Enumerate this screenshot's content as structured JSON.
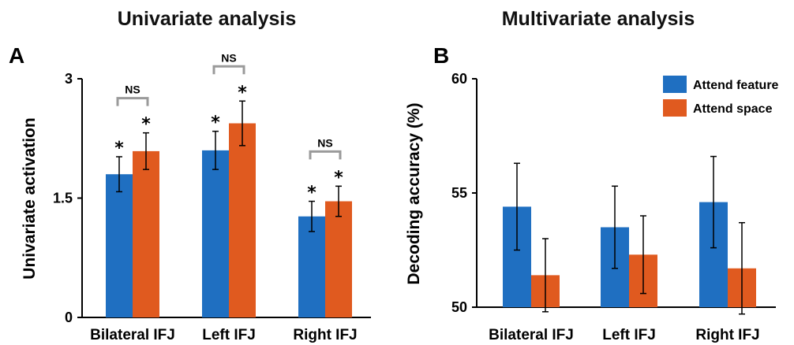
{
  "colors": {
    "attend_feature": "#1f6fc1",
    "attend_space": "#e05a1f",
    "bracket": "#9a9a9a"
  },
  "chart_data": [
    {
      "panel": "A",
      "type": "bar",
      "title": "Univariate analysis",
      "ylabel": "Univariate activation",
      "xlabel": "",
      "ylim": [
        0,
        3
      ],
      "yticks": [
        "0",
        "1.5",
        "3"
      ],
      "categories": [
        "Bilateral IFJ",
        "Left IFJ",
        "Right IFJ"
      ],
      "series": [
        {
          "name": "Attend feature",
          "values": [
            1.8,
            2.1,
            1.27
          ],
          "errors": [
            0.22,
            0.24,
            0.19
          ]
        },
        {
          "name": "Attend space",
          "values": [
            2.09,
            2.44,
            1.46
          ],
          "errors": [
            0.23,
            0.28,
            0.19
          ]
        }
      ],
      "significance_marker": "*",
      "comparison_label": "NS"
    },
    {
      "panel": "B",
      "type": "bar",
      "title": "Multivariate analysis",
      "ylabel": "Decoding accuracy (%)",
      "xlabel": "",
      "ylim": [
        50,
        60
      ],
      "yticks": [
        "50",
        "55",
        "60"
      ],
      "categories": [
        "Bilateral IFJ",
        "Left IFJ",
        "Right IFJ"
      ],
      "series": [
        {
          "name": "Attend feature",
          "values": [
            54.4,
            53.5,
            54.6
          ],
          "errors": [
            1.9,
            1.8,
            2.0
          ]
        },
        {
          "name": "Attend space",
          "values": [
            51.4,
            52.3,
            51.7
          ],
          "errors": [
            1.6,
            1.7,
            2.0
          ]
        }
      ],
      "legend": "top-right"
    }
  ]
}
